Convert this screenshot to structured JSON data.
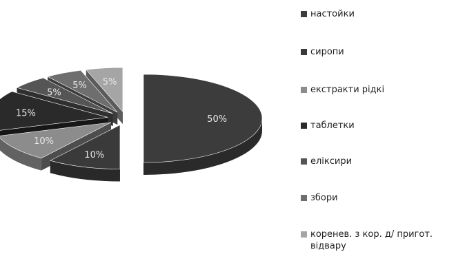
{
  "chart_data": {
    "type": "pie",
    "style": "3d-exploded",
    "slices": [
      {
        "label": "настойки",
        "value": 50,
        "display": "50%",
        "color": "#3c3c3c"
      },
      {
        "label": "сиропи",
        "value": 10,
        "display": "10%",
        "color": "#3a3a3a"
      },
      {
        "label": "екстракти рідкі",
        "value": 10,
        "display": "10%",
        "color": "#8c8c8c"
      },
      {
        "label": "таблетки",
        "value": 15,
        "display": "15%",
        "color": "#2a2a2a"
      },
      {
        "label": "еліксири",
        "value": 5,
        "display": "5%",
        "color": "#555555"
      },
      {
        "label": "збори",
        "value": 5,
        "display": "5%",
        "color": "#6e6e6e"
      },
      {
        "label": "коренев. з кор. д/ пригот. відвару",
        "value": 5,
        "display": "5%",
        "color": "#a5a5a5"
      }
    ],
    "legend_position": "right"
  }
}
